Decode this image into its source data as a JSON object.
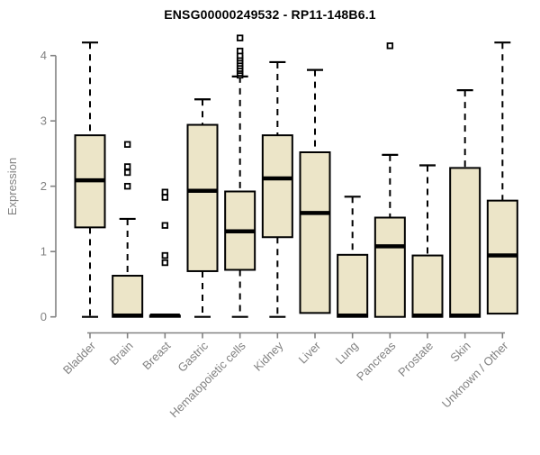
{
  "chart_data": {
    "type": "boxplot",
    "title": "ENSG00000249532 - RP11-148B6.1",
    "ylabel": "Expression",
    "xlabel": "",
    "ylim": [
      0,
      4.3
    ],
    "yticks": [
      0,
      1,
      2,
      3,
      4
    ],
    "grid": false,
    "legend": "none",
    "categories": [
      "Bladder",
      "Brain",
      "Breast",
      "Gastric",
      "Hematopoietic cells",
      "Kidney",
      "Liver",
      "Lung",
      "Pancreas",
      "Prostate",
      "Skin",
      "Unknown / Other"
    ],
    "series": [
      {
        "name": "Bladder",
        "min": 0,
        "q1": 1.37,
        "median": 2.09,
        "q3": 2.78,
        "max": 4.2,
        "outliers": []
      },
      {
        "name": "Brain",
        "min": 0,
        "q1": 0,
        "median": 0.02,
        "q3": 0.63,
        "max": 1.5,
        "outliers": [
          2.64,
          2.3,
          2.21,
          2.0
        ]
      },
      {
        "name": "Breast",
        "min": 0,
        "q1": 0,
        "median": 0.02,
        "q3": 0.02,
        "max": 0.02,
        "outliers": [
          1.91,
          1.83,
          1.4,
          0.94,
          0.83
        ]
      },
      {
        "name": "Gastric",
        "min": 0,
        "q1": 0.7,
        "median": 1.93,
        "q3": 2.94,
        "max": 3.33,
        "outliers": []
      },
      {
        "name": "Hematopoietic cells",
        "min": 0,
        "q1": 0.72,
        "median": 1.31,
        "q3": 1.92,
        "max": 3.68,
        "outliers": [
          3.7,
          3.73,
          3.77,
          3.8,
          3.84,
          3.88,
          3.92,
          3.96,
          4.0,
          4.07,
          4.27
        ]
      },
      {
        "name": "Kidney",
        "min": 0,
        "q1": 1.22,
        "median": 2.12,
        "q3": 2.78,
        "max": 3.9,
        "outliers": []
      },
      {
        "name": "Liver",
        "min": 0.06,
        "q1": 0.06,
        "median": 1.59,
        "q3": 2.52,
        "max": 3.78,
        "outliers": []
      },
      {
        "name": "Lung",
        "min": 0,
        "q1": 0,
        "median": 0.02,
        "q3": 0.95,
        "max": 1.84,
        "outliers": []
      },
      {
        "name": "Pancreas",
        "min": 0,
        "q1": 0,
        "median": 1.08,
        "q3": 1.52,
        "max": 2.48,
        "outliers": [
          4.15
        ]
      },
      {
        "name": "Prostate",
        "min": 0,
        "q1": 0,
        "median": 0.02,
        "q3": 0.94,
        "max": 2.32,
        "outliers": []
      },
      {
        "name": "Skin",
        "min": 0,
        "q1": 0,
        "median": 0.02,
        "q3": 2.28,
        "max": 3.47,
        "outliers": []
      },
      {
        "name": "Unknown / Other",
        "min": 0.05,
        "q1": 0.05,
        "median": 0.94,
        "q3": 1.78,
        "max": 4.2,
        "outliers": []
      }
    ],
    "colors": {
      "box_fill": "#ece5c8",
      "box_stroke": "#000000",
      "median": "#000000",
      "whisker": "#000000",
      "axis": "#828282",
      "tick_label": "#828282",
      "title": "#000000",
      "background": "#ffffff"
    }
  }
}
